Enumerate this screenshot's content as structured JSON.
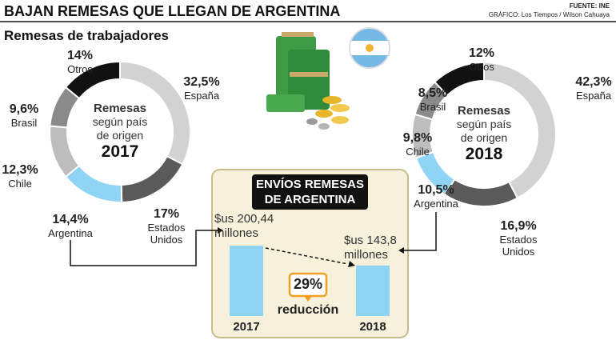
{
  "title": "BAJAN REMESAS QUE LLEGAN DE ARGENTINA",
  "source": "FUENTE: INE",
  "credit": "GRÁFICO: Los Tiempos / Wilson Cahuaya",
  "chart_data": [
    {
      "type": "donut",
      "title": "Remesas de trabajadores",
      "center_title": "Remesas",
      "center_subtitle": "según país de origen",
      "year": "2017",
      "categories": [
        "España",
        "Estados Unidos",
        "Argentina",
        "Chile",
        "Brasil",
        "Otros"
      ],
      "values": [
        32.5,
        17,
        14.4,
        12.3,
        9.6,
        14
      ],
      "value_labels": [
        "32,5%",
        "17%",
        "14,4%",
        "12,3%",
        "9,6%",
        "14%"
      ],
      "colors": [
        "#d2d2d2",
        "#5a5a5a",
        "#8fd4f5",
        "#bdbdbd",
        "#8a8a8a",
        "#111111"
      ]
    },
    {
      "type": "donut",
      "center_title": "Remesas",
      "center_subtitle": "según país de origen",
      "year": "2018",
      "categories": [
        "España",
        "Estados Unidos",
        "Argentina",
        "Chile",
        "Brasil",
        "Otros"
      ],
      "values": [
        42.3,
        16.9,
        10.5,
        9.8,
        8.5,
        12
      ],
      "value_labels": [
        "42,3%",
        "16,9%",
        "10,5%",
        "9,8%",
        "8,5%",
        "12%"
      ],
      "colors": [
        "#d2d2d2",
        "#5a5a5a",
        "#8fd4f5",
        "#bdbdbd",
        "#8a8a8a",
        "#111111"
      ]
    },
    {
      "type": "bar",
      "title": "ENVÍOS REMESAS DE ARGENTINA",
      "categories": [
        "2017",
        "2018"
      ],
      "values": [
        200.44,
        143.8
      ],
      "value_labels": [
        "$us 200,44 millones",
        "$us 143,8 millones"
      ],
      "color": "#8fd4f5",
      "annotation": "29%",
      "annotation_text": "reducción"
    }
  ]
}
